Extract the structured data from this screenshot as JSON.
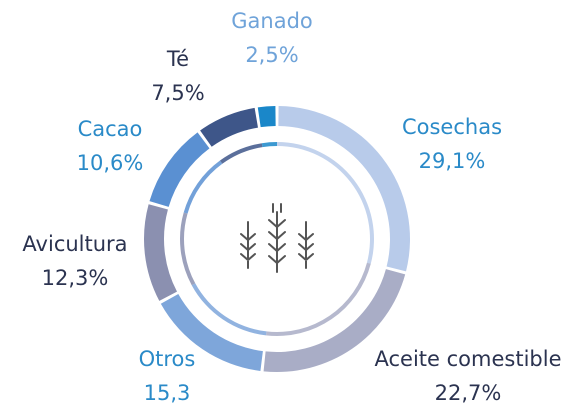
{
  "chart_data": {
    "type": "donut",
    "categories": [
      "Cosechas",
      "Aceite comestible",
      "Otros",
      "Avicultura",
      "Cacao",
      "Té",
      "Ganado"
    ],
    "values": [
      29.1,
      22.7,
      15.3,
      12.3,
      10.6,
      7.5,
      2.5
    ],
    "value_labels": [
      "29,1%",
      "22,7%",
      "15,3",
      "12,3%",
      "10,6%",
      "7,5%",
      "2,5%"
    ],
    "colors": [
      "#b8cbea",
      "#a9adc6",
      "#7ea6da",
      "#8b90b0",
      "#5a90d2",
      "#3e5689",
      "#1a87c9"
    ],
    "label_colors": [
      "#2a8ac8",
      "#2b3350",
      "#2a8ac8",
      "#2b3350",
      "#2a8ac8",
      "#2b3350",
      "#6fa3d9"
    ]
  }
}
